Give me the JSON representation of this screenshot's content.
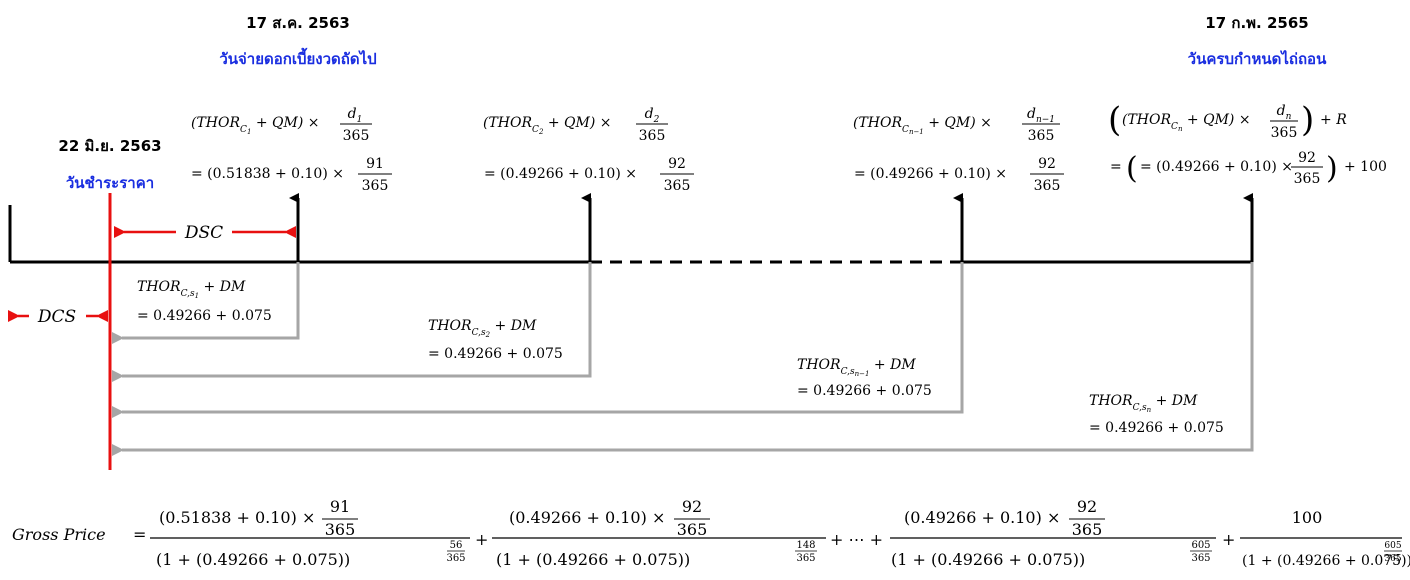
{
  "dates": {
    "settle_date": "22 มิ.ย. 2563",
    "settle_label": "วันชำระราคา",
    "next_coupon_date": "17 ส.ค. 2563",
    "next_coupon_label": "วันจ่ายดอกเบี้ยงวดถัดไป",
    "maturity_date": "17 ก.พ. 2565",
    "maturity_label": "วันครบกำหนดไถ่ถอน"
  },
  "labels": {
    "dsc": "DSC",
    "dcs": "DCS",
    "gross_price": "Gross Price"
  },
  "coupons": [
    {
      "thor": "THOR",
      "sub": "C",
      "subsub": "1",
      "qm": "QM",
      "d": "d",
      "dsub": "1",
      "denom": "365",
      "calc_base": "= (0.51838 + 0.10) ×",
      "calc_num": "91",
      "calc_den": "365"
    },
    {
      "thor": "THOR",
      "sub": "C",
      "subsub": "2",
      "qm": "QM",
      "d": "d",
      "dsub": "2",
      "denom": "365",
      "calc_base": "= (0.49266 + 0.10) ×",
      "calc_num": "92",
      "calc_den": "365"
    },
    {
      "thor": "THOR",
      "sub": "C",
      "subsub": "n−1",
      "qm": "QM",
      "d": "d",
      "dsub": "n−1",
      "denom": "365",
      "calc_base": "= (0.49266 + 0.10) ×",
      "calc_num": "92",
      "calc_den": "365"
    },
    {
      "thor": "THOR",
      "sub": "C",
      "subsub": "n",
      "qm": "QM",
      "d": "d",
      "dsub": "n",
      "denom": "365",
      "r": "R",
      "calc_base": "= (0.49266 + 0.10) ×",
      "calc_num": "92",
      "calc_den": "365",
      "calc_add": "+ 100"
    }
  ],
  "discounts": [
    {
      "thor": "THOR",
      "sub": "C,s",
      "subsub": "1",
      "dm": "DM",
      "value": "= 0.49266 + 0.075"
    },
    {
      "thor": "THOR",
      "sub": "C,s",
      "subsub": "2",
      "dm": "DM",
      "value": "= 0.49266 + 0.075"
    },
    {
      "thor": "THOR",
      "sub": "C,s",
      "subsub": "n−1",
      "dm": "DM",
      "value": "= 0.49266 + 0.075"
    },
    {
      "thor": "THOR",
      "sub": "C,s",
      "subsub": "n",
      "dm": "DM",
      "value": "= 0.49266 + 0.075"
    }
  ],
  "gross_price_terms": [
    {
      "num_base": "(0.51838 + 0.10) ×",
      "num_frac_n": "91",
      "num_frac_d": "365",
      "den_base": "1 + (0.49266 + 0.075)",
      "exp_n": "56",
      "exp_d": "365"
    },
    {
      "num_base": "(0.49266 + 0.10) ×",
      "num_frac_n": "92",
      "num_frac_d": "365",
      "den_base": "1 + (0.49266 + 0.075)",
      "exp_n": "148",
      "exp_d": "365"
    },
    {
      "num_base": "(0.49266 + 0.10) ×",
      "num_frac_n": "92",
      "num_frac_d": "365",
      "den_base": "1 + (0.49266 + 0.075)",
      "exp_n": "605",
      "exp_d": "365"
    },
    {
      "num_base": "100",
      "num_frac_n": "",
      "num_frac_d": "",
      "den_base": "1 + (0.49266 + 0.075)",
      "exp_n": "605",
      "exp_d": "365"
    }
  ],
  "gross_ops": {
    "plus": "+",
    "ellipsis": "+ ⋯ +",
    "equals": "="
  },
  "colors": {
    "axis": "#000000",
    "settle_line": "#e81010",
    "discount_arrow": "#a6a6a6",
    "thai_label": "#1a2ee0"
  }
}
